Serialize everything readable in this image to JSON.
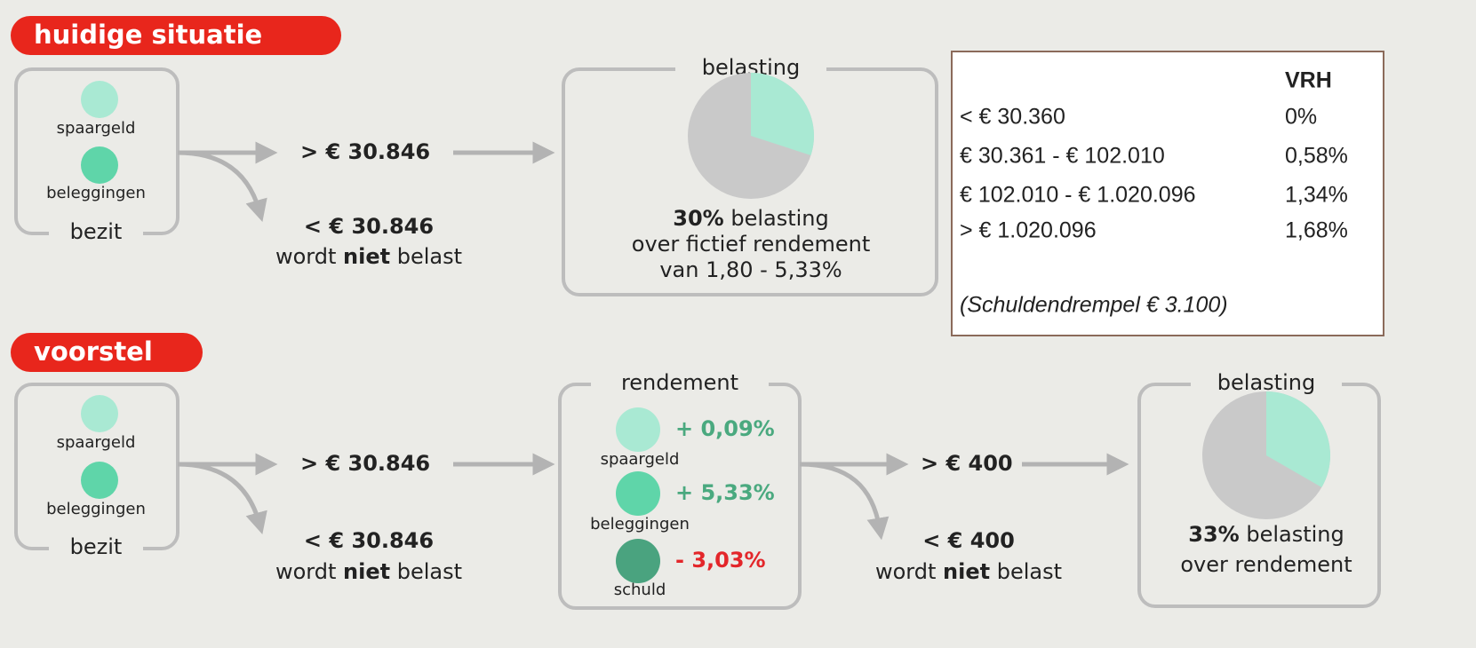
{
  "top": {
    "title": "huidige situatie",
    "holdings": {
      "items": [
        "spaargeld",
        "beleggingen"
      ],
      "label": "bezit"
    },
    "above": "> € 30.846",
    "below": "< € 30.846",
    "not_taxed": [
      "wordt ",
      "niet",
      " belast"
    ],
    "tax": {
      "label": "belasting",
      "rate": "30%",
      "rate_text": " belasting",
      "line2": "over fictief rendement",
      "line3": "van 1,80 - 5,33%"
    }
  },
  "table": {
    "header": "VRH",
    "rows": [
      [
        "< € 30.360",
        "0%"
      ],
      [
        "€ 30.361 - € 102.010",
        "0,58%"
      ],
      [
        "€ 102.010 - € 1.020.096",
        "1,34%"
      ],
      [
        "> € 1.020.096",
        "1,68%"
      ]
    ],
    "note": "(Schuldendrempel € 3.100)"
  },
  "bottom": {
    "title": "voorstel",
    "holdings": {
      "items": [
        "spaargeld",
        "beleggingen"
      ],
      "label": "bezit"
    },
    "above": "> € 30.846",
    "below": "< € 30.846",
    "not_taxed": [
      "wordt ",
      "niet",
      " belast"
    ],
    "return": {
      "label": "rendement",
      "items": [
        {
          "name": "spaargeld",
          "rate": "+ 0,09%"
        },
        {
          "name": "beleggingen",
          "rate": "+ 5,33%"
        },
        {
          "name": "schuld",
          "rate": "- 3,03%"
        }
      ]
    },
    "above2": "> € 400",
    "below2": "< € 400",
    "not_taxed2": [
      "wordt ",
      "niet",
      " belast"
    ],
    "tax": {
      "label": "belasting",
      "rate": "33%",
      "rate_text": " belasting",
      "line2": "over rendement"
    }
  }
}
